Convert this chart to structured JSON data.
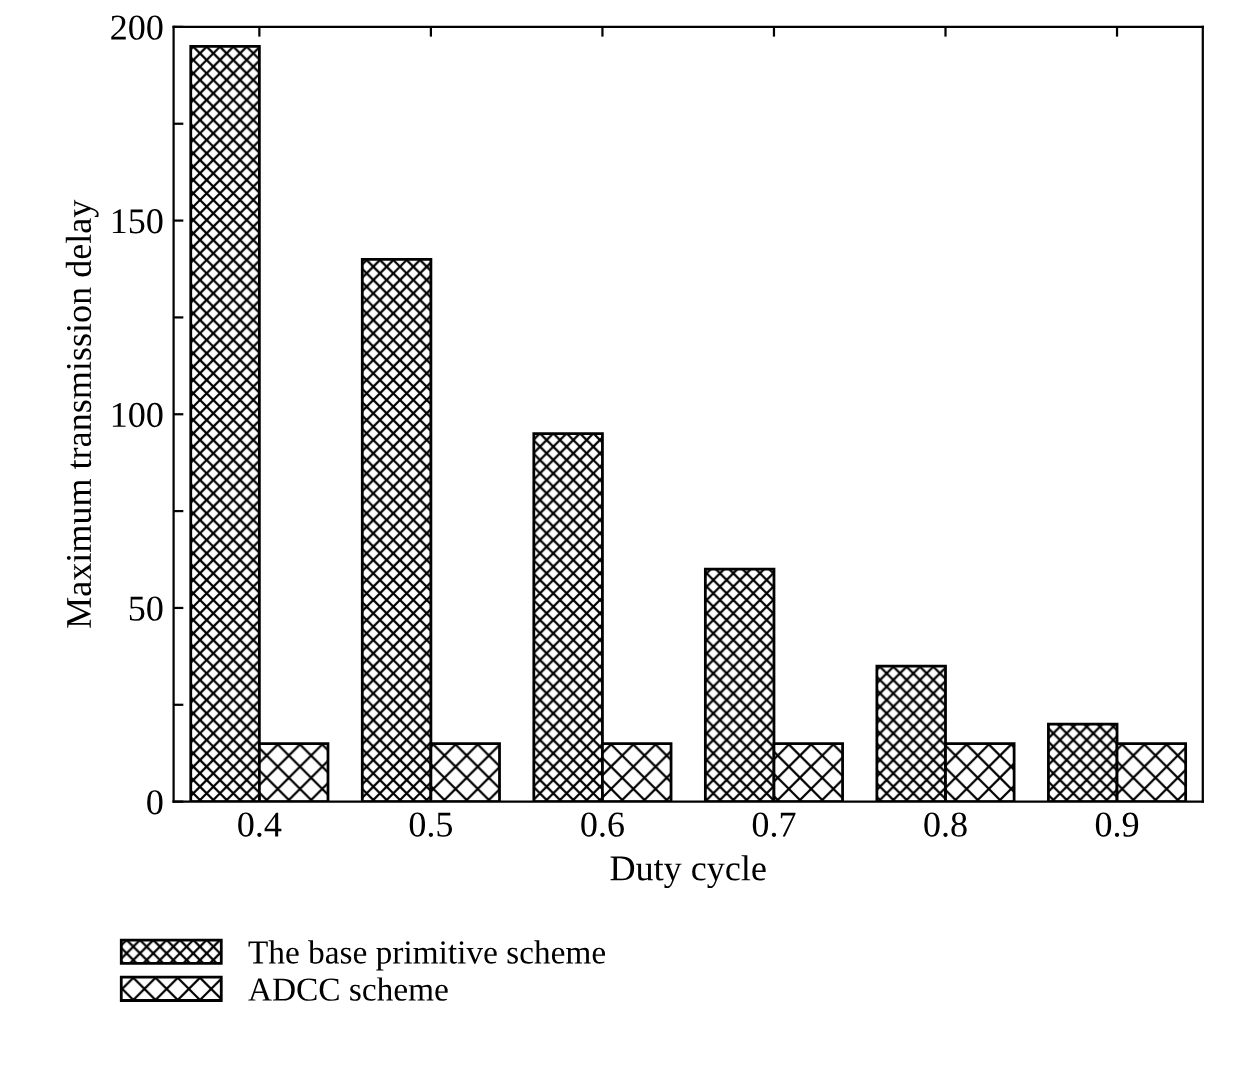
{
  "chart_data": {
    "type": "bar",
    "xlabel": "Duty cycle",
    "ylabel": "Maximum transmission delay",
    "categories": [
      "0.4",
      "0.5",
      "0.6",
      "0.7",
      "0.8",
      "0.9"
    ],
    "series": [
      {
        "name": "The base primitive scheme",
        "color": "#000000",
        "values": [
          195,
          140,
          95,
          60,
          35,
          20
        ]
      },
      {
        "name": "ADCC scheme",
        "color": "#000000",
        "values": [
          15,
          15,
          15,
          15,
          15,
          15
        ]
      }
    ],
    "ylim": [
      0,
      200
    ],
    "yticks": [
      0,
      {
        "value": 25,
        "label": null
      },
      50,
      {
        "value": 75,
        "label": null
      },
      100,
      {
        "value": 125,
        "label": null
      },
      150,
      {
        "value": 175,
        "label": null
      },
      200
    ],
    "grid": false,
    "legend": "bottom"
  }
}
